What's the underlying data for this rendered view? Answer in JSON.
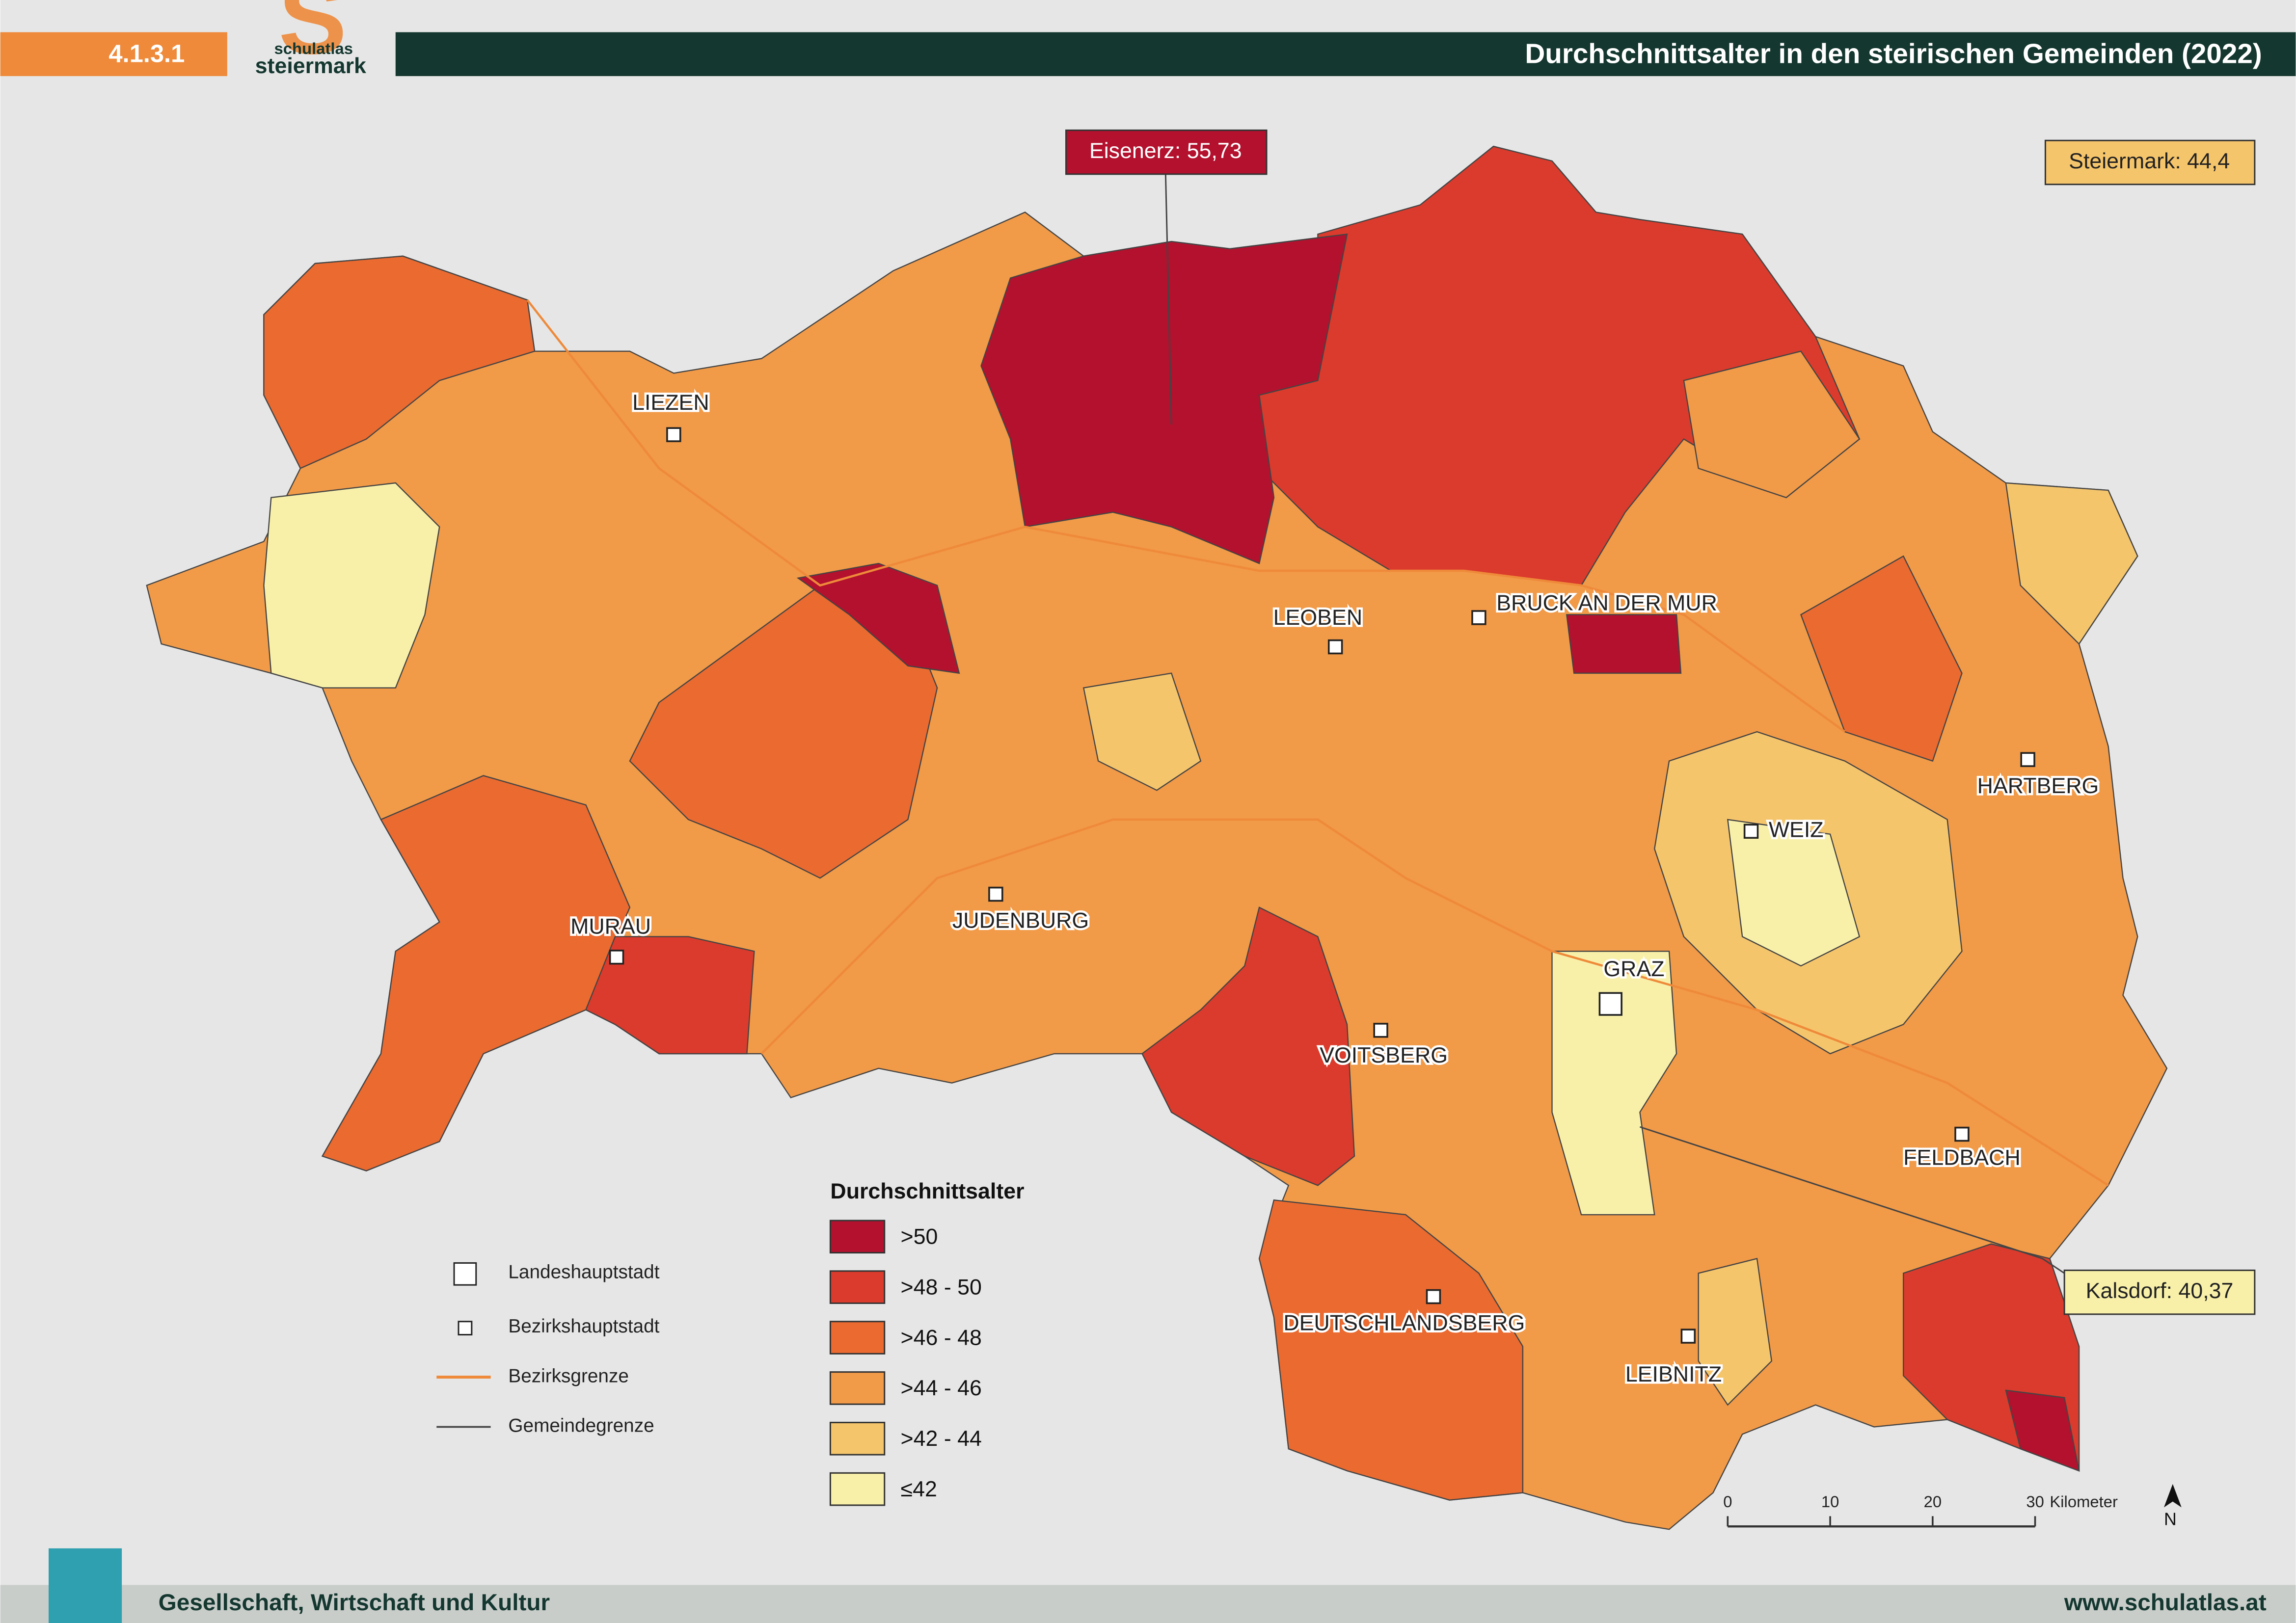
{
  "header": {
    "code": "4.1.3.1",
    "logo_top": "schulatlas",
    "logo_bottom": "steiermark",
    "title": "Durchschnittsalter in den steirischen Gemeinden (2022)"
  },
  "callouts": [
    "Eisenerz: 55,73",
    "Steiermark: 44,4",
    "Kalsdorf: 40,37"
  ],
  "cities": [
    "LIEZEN",
    "LEOBEN",
    "BRUCK AN DER MUR",
    "HARTBERG",
    "WEIZ",
    "JUDENBURG",
    "MURAU",
    "GRAZ",
    "VOITSBERG",
    "FELDBACH",
    "DEUTSCHLANDSBERG",
    "LEIBNITZ"
  ],
  "legend": {
    "title": "Durchschnittsalter",
    "classes": [
      {
        "label": ">50",
        "color": "#b3112e"
      },
      {
        "label": ">48 - 50",
        "color": "#db3b2c"
      },
      {
        "label": ">46 - 48",
        "color": "#ea6a30"
      },
      {
        "label": ">44 - 46",
        "color": "#f19a48"
      },
      {
        "label": ">42 - 44",
        "color": "#f5c56c"
      },
      {
        "label": "≤42",
        "color": "#f8f0a9"
      }
    ]
  },
  "symbols": [
    "Landeshauptstadt",
    "Bezirkshauptstadt",
    "Bezirksgrenze",
    "Gemeindegrenze"
  ],
  "scale": {
    "ticks": [
      0,
      10,
      20,
      30
    ],
    "unit": "Kilometer"
  },
  "north": "N",
  "footer": {
    "left": "Gesellschaft, Wirtschaft und Kultur",
    "right": "www.schulatlas.at"
  }
}
